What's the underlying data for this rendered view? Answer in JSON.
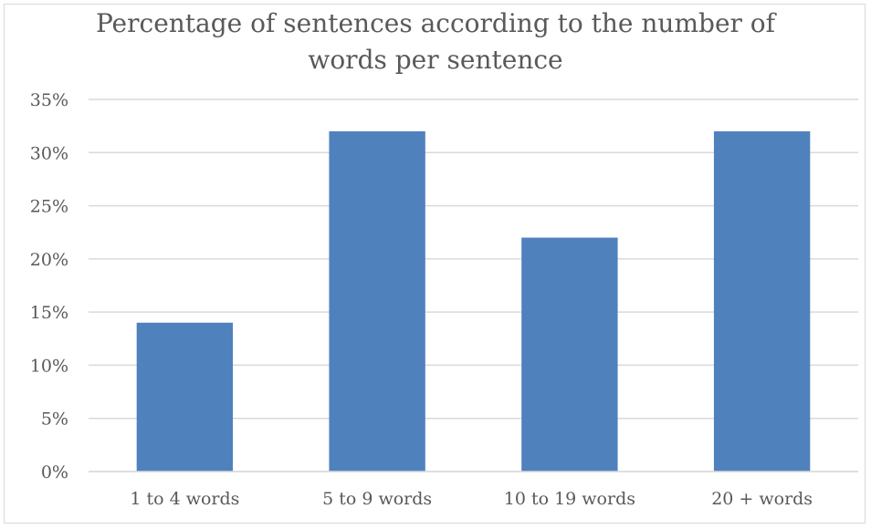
{
  "chart_data": {
    "type": "bar",
    "title": "Percentage of sentences according to the number of words per sentence",
    "title_lines": [
      "Percentage of sentences according to the number of",
      "words per sentence"
    ],
    "categories": [
      "1 to 4 words",
      "5 to 9 words",
      "10 to 19 words",
      "20 + words"
    ],
    "values": [
      14,
      32,
      22,
      32
    ],
    "ylim": [
      0,
      35
    ],
    "yticks": [
      0,
      5,
      10,
      15,
      20,
      25,
      30,
      35
    ],
    "ytick_labels": [
      "0%",
      "5%",
      "10%",
      "15%",
      "20%",
      "25%",
      "30%",
      "35%"
    ],
    "xlabel": "",
    "ylabel": "",
    "grid": true,
    "legend": "none",
    "colors": {
      "bar": "#4f81bd",
      "grid": "#d9d9d9",
      "text": "#595959"
    }
  }
}
